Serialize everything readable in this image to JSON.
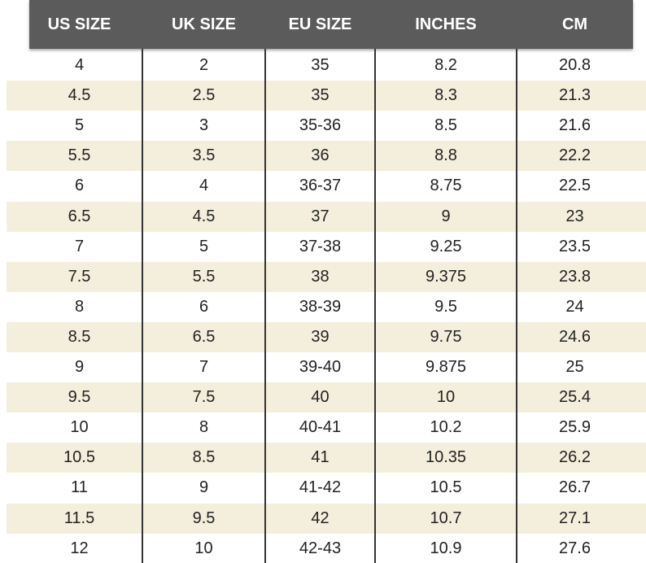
{
  "table": {
    "header": [
      "US SIZE",
      "UK SIZE",
      "EU SIZE",
      "INCHES",
      "CM"
    ],
    "rows": [
      [
        "4",
        "2",
        "35",
        "8.2",
        "20.8"
      ],
      [
        "4.5",
        "2.5",
        "35",
        "8.3",
        "21.3"
      ],
      [
        "5",
        "3",
        "35-36",
        "8.5",
        "21.6"
      ],
      [
        "5.5",
        "3.5",
        "36",
        "8.8",
        "22.2"
      ],
      [
        "6",
        "4",
        "36-37",
        "8.75",
        "22.5"
      ],
      [
        "6.5",
        "4.5",
        "37",
        "9",
        "23"
      ],
      [
        "7",
        "5",
        "37-38",
        "9.25",
        "23.5"
      ],
      [
        "7.5",
        "5.5",
        "38",
        "9.375",
        "23.8"
      ],
      [
        "8",
        "6",
        "38-39",
        "9.5",
        "24"
      ],
      [
        "8.5",
        "6.5",
        "39",
        "9.75",
        "24.6"
      ],
      [
        "9",
        "7",
        "39-40",
        "9.875",
        "25"
      ],
      [
        "9.5",
        "7.5",
        "40",
        "10",
        "25.4"
      ],
      [
        "10",
        "8",
        "40-41",
        "10.2",
        "25.9"
      ],
      [
        "10.5",
        "8.5",
        "41",
        "10.35",
        "26.2"
      ],
      [
        "11",
        "9",
        "41-42",
        "10.5",
        "26.7"
      ],
      [
        "11.5",
        "9.5",
        "42",
        "10.7",
        "27.1"
      ],
      [
        "12",
        "10",
        "42-43",
        "10.9",
        "27.6"
      ]
    ]
  }
}
